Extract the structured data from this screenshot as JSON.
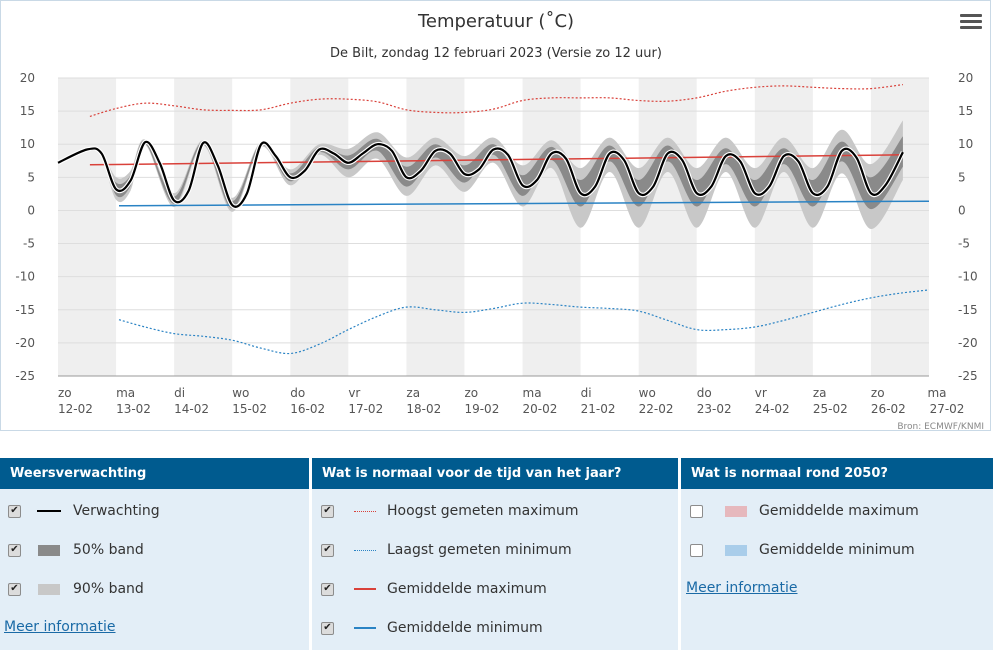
{
  "chart_data": {
    "type": "line",
    "title": "Temperatuur (˚C)",
    "subtitle": "De Bilt, zondag 12 februari 2023 (Versie zo 12 uur)",
    "source": "Bron: ECMWF/KNMI",
    "ylim": [
      -25,
      20
    ],
    "y_ticks": [
      20,
      15,
      10,
      5,
      0,
      -5,
      -10,
      -15,
      -20,
      -25
    ],
    "x_range": [
      0,
      15
    ],
    "x_ticks": [
      {
        "day": "zo",
        "date": "12-02"
      },
      {
        "day": "ma",
        "date": "13-02"
      },
      {
        "day": "di",
        "date": "14-02"
      },
      {
        "day": "wo",
        "date": "15-02"
      },
      {
        "day": "do",
        "date": "16-02"
      },
      {
        "day": "vr",
        "date": "17-02"
      },
      {
        "day": "za",
        "date": "18-02"
      },
      {
        "day": "zo",
        "date": "19-02"
      },
      {
        "day": "ma",
        "date": "20-02"
      },
      {
        "day": "di",
        "date": "21-02"
      },
      {
        "day": "wo",
        "date": "22-02"
      },
      {
        "day": "do",
        "date": "23-02"
      },
      {
        "day": "vr",
        "date": "24-02"
      },
      {
        "day": "za",
        "date": "25-02"
      },
      {
        "day": "zo",
        "date": "26-02"
      },
      {
        "day": "ma",
        "date": "27-02"
      }
    ],
    "grid": true,
    "series": [
      {
        "name": "Verwachting",
        "color": "#000000",
        "points": [
          [
            0.0,
            7.2
          ],
          [
            0.5,
            9.2
          ],
          [
            0.75,
            8.6
          ],
          [
            1.0,
            3.2
          ],
          [
            1.25,
            4.5
          ],
          [
            1.5,
            10.3
          ],
          [
            1.75,
            7.2
          ],
          [
            2.0,
            1.5
          ],
          [
            2.25,
            3.0
          ],
          [
            2.5,
            10.2
          ],
          [
            2.75,
            6.8
          ],
          [
            3.0,
            0.8
          ],
          [
            3.25,
            2.5
          ],
          [
            3.5,
            10.0
          ],
          [
            3.75,
            8.2
          ],
          [
            4.0,
            5.0
          ],
          [
            4.25,
            6.0
          ],
          [
            4.5,
            9.2
          ],
          [
            4.75,
            8.6
          ],
          [
            5.0,
            7.2
          ],
          [
            5.25,
            8.6
          ],
          [
            5.5,
            10.0
          ],
          [
            5.75,
            9.0
          ],
          [
            6.0,
            5.0
          ],
          [
            6.25,
            6.0
          ],
          [
            6.5,
            9.0
          ],
          [
            6.75,
            8.6
          ],
          [
            7.0,
            5.5
          ],
          [
            7.25,
            6.2
          ],
          [
            7.5,
            9.2
          ],
          [
            7.75,
            8.4
          ],
          [
            8.0,
            3.8
          ],
          [
            8.25,
            4.6
          ],
          [
            8.5,
            8.6
          ],
          [
            8.75,
            7.8
          ],
          [
            9.0,
            2.6
          ],
          [
            9.25,
            3.6
          ],
          [
            9.5,
            8.6
          ],
          [
            9.75,
            7.6
          ],
          [
            10.0,
            2.6
          ],
          [
            10.25,
            3.6
          ],
          [
            10.5,
            8.6
          ],
          [
            10.75,
            7.6
          ],
          [
            11.0,
            2.6
          ],
          [
            11.25,
            3.6
          ],
          [
            11.5,
            8.2
          ],
          [
            11.75,
            7.4
          ],
          [
            12.0,
            2.6
          ],
          [
            12.25,
            3.6
          ],
          [
            12.5,
            8.2
          ],
          [
            12.75,
            7.4
          ],
          [
            13.0,
            2.6
          ],
          [
            13.25,
            3.6
          ],
          [
            13.5,
            9.0
          ],
          [
            13.75,
            8.0
          ],
          [
            14.0,
            2.6
          ],
          [
            14.25,
            3.8
          ],
          [
            14.55,
            8.8
          ]
        ]
      },
      {
        "name": "50% band",
        "color": "#8a8a8a",
        "upper": [
          [
            0.55,
            9.3
          ],
          [
            0.75,
            8.8
          ],
          [
            1.0,
            4.2
          ],
          [
            1.25,
            5.3
          ],
          [
            1.5,
            10.5
          ],
          [
            2.0,
            2.1
          ],
          [
            2.5,
            10.4
          ],
          [
            3.0,
            1.4
          ],
          [
            3.5,
            10.2
          ],
          [
            4.0,
            5.6
          ],
          [
            4.5,
            9.6
          ],
          [
            5.0,
            8.3
          ],
          [
            5.5,
            10.8
          ],
          [
            6.0,
            6.6
          ],
          [
            6.5,
            10.0
          ],
          [
            7.0,
            6.8
          ],
          [
            7.5,
            10.0
          ],
          [
            8.0,
            5.3
          ],
          [
            8.5,
            9.6
          ],
          [
            9.0,
            4.6
          ],
          [
            9.5,
            9.8
          ],
          [
            10.0,
            4.6
          ],
          [
            10.5,
            9.8
          ],
          [
            11.0,
            4.6
          ],
          [
            11.5,
            9.4
          ],
          [
            12.0,
            4.6
          ],
          [
            12.5,
            9.4
          ],
          [
            13.0,
            4.6
          ],
          [
            13.5,
            10.4
          ],
          [
            14.0,
            5.0
          ],
          [
            14.55,
            11.2
          ]
        ],
        "lower": [
          [
            0.55,
            9.1
          ],
          [
            0.75,
            8.4
          ],
          [
            1.0,
            2.3
          ],
          [
            1.25,
            3.7
          ],
          [
            1.5,
            10.1
          ],
          [
            2.0,
            1.0
          ],
          [
            2.5,
            10.0
          ],
          [
            3.0,
            0.3
          ],
          [
            3.5,
            9.8
          ],
          [
            4.0,
            4.4
          ],
          [
            4.5,
            8.8
          ],
          [
            5.0,
            6.2
          ],
          [
            5.5,
            9.0
          ],
          [
            6.0,
            3.6
          ],
          [
            6.5,
            8.0
          ],
          [
            7.0,
            4.2
          ],
          [
            7.5,
            8.4
          ],
          [
            8.0,
            2.2
          ],
          [
            8.5,
            7.6
          ],
          [
            9.0,
            0.6
          ],
          [
            9.5,
            7.4
          ],
          [
            10.0,
            0.6
          ],
          [
            10.5,
            7.4
          ],
          [
            11.0,
            0.6
          ],
          [
            11.5,
            7.0
          ],
          [
            12.0,
            0.6
          ],
          [
            12.5,
            7.0
          ],
          [
            13.0,
            0.6
          ],
          [
            13.5,
            7.4
          ],
          [
            14.0,
            0.2
          ],
          [
            14.55,
            6.6
          ]
        ]
      },
      {
        "name": "90% band",
        "color": "#c8c8c8",
        "upper": [
          [
            0.55,
            9.4
          ],
          [
            0.75,
            9.0
          ],
          [
            1.0,
            5.0
          ],
          [
            1.25,
            6.0
          ],
          [
            1.5,
            10.7
          ],
          [
            2.0,
            2.6
          ],
          [
            2.5,
            10.6
          ],
          [
            3.0,
            1.9
          ],
          [
            3.5,
            10.4
          ],
          [
            4.0,
            6.2
          ],
          [
            4.5,
            10.0
          ],
          [
            5.0,
            9.3
          ],
          [
            5.5,
            11.8
          ],
          [
            6.0,
            8.0
          ],
          [
            6.5,
            11.0
          ],
          [
            7.0,
            8.2
          ],
          [
            7.5,
            11.0
          ],
          [
            8.0,
            6.8
          ],
          [
            8.5,
            10.6
          ],
          [
            9.0,
            6.4
          ],
          [
            9.5,
            11.0
          ],
          [
            10.0,
            6.4
          ],
          [
            10.5,
            11.0
          ],
          [
            11.0,
            6.4
          ],
          [
            11.5,
            11.0
          ],
          [
            12.0,
            6.4
          ],
          [
            12.5,
            11.0
          ],
          [
            13.0,
            6.4
          ],
          [
            13.5,
            12.2
          ],
          [
            14.0,
            7.0
          ],
          [
            14.55,
            13.6
          ]
        ],
        "lower": [
          [
            0.55,
            9.0
          ],
          [
            0.75,
            8.2
          ],
          [
            1.0,
            1.6
          ],
          [
            1.25,
            3.0
          ],
          [
            1.5,
            9.9
          ],
          [
            2.0,
            0.5
          ],
          [
            2.5,
            9.8
          ],
          [
            3.0,
            -0.2
          ],
          [
            3.5,
            9.6
          ],
          [
            4.0,
            3.8
          ],
          [
            4.5,
            8.4
          ],
          [
            5.0,
            5.0
          ],
          [
            5.5,
            7.8
          ],
          [
            6.0,
            2.2
          ],
          [
            6.5,
            6.8
          ],
          [
            7.0,
            2.8
          ],
          [
            7.5,
            7.2
          ],
          [
            8.0,
            0.6
          ],
          [
            8.5,
            6.4
          ],
          [
            9.0,
            -2.6
          ],
          [
            9.5,
            5.8
          ],
          [
            10.0,
            -2.6
          ],
          [
            10.5,
            5.8
          ],
          [
            11.0,
            -2.6
          ],
          [
            11.5,
            5.8
          ],
          [
            12.0,
            -2.6
          ],
          [
            12.5,
            5.8
          ],
          [
            13.0,
            -2.6
          ],
          [
            13.5,
            5.6
          ],
          [
            14.0,
            -2.8
          ],
          [
            14.55,
            4.6
          ]
        ]
      },
      {
        "name": "Hoogst gemeten maximum",
        "color": "#d9413a",
        "points": [
          [
            0.55,
            14.2
          ],
          [
            1.0,
            15.4
          ],
          [
            1.5,
            16.2
          ],
          [
            2.0,
            15.8
          ],
          [
            2.5,
            15.2
          ],
          [
            3.0,
            15.1
          ],
          [
            3.5,
            15.2
          ],
          [
            4.0,
            16.2
          ],
          [
            4.5,
            16.8
          ],
          [
            5.0,
            16.8
          ],
          [
            5.5,
            16.4
          ],
          [
            6.0,
            15.2
          ],
          [
            6.5,
            14.8
          ],
          [
            7.0,
            14.8
          ],
          [
            7.5,
            15.3
          ],
          [
            8.0,
            16.6
          ],
          [
            8.5,
            17.0
          ],
          [
            9.0,
            17.0
          ],
          [
            9.5,
            17.0
          ],
          [
            10.0,
            16.6
          ],
          [
            10.5,
            16.5
          ],
          [
            11.0,
            17.0
          ],
          [
            11.5,
            18.0
          ],
          [
            12.0,
            18.6
          ],
          [
            12.5,
            18.8
          ],
          [
            13.0,
            18.6
          ],
          [
            13.5,
            18.4
          ],
          [
            14.0,
            18.4
          ],
          [
            14.55,
            19.0
          ]
        ]
      },
      {
        "name": "Laagst gemeten minimum",
        "color": "#2a83c4",
        "points": [
          [
            1.05,
            -16.5
          ],
          [
            1.5,
            -17.6
          ],
          [
            2.0,
            -18.6
          ],
          [
            2.5,
            -19.0
          ],
          [
            3.0,
            -19.6
          ],
          [
            3.5,
            -20.8
          ],
          [
            4.0,
            -21.6
          ],
          [
            4.5,
            -20.2
          ],
          [
            5.0,
            -18.0
          ],
          [
            5.5,
            -16.0
          ],
          [
            6.0,
            -14.6
          ],
          [
            6.5,
            -15.0
          ],
          [
            7.0,
            -15.4
          ],
          [
            7.5,
            -14.8
          ],
          [
            8.0,
            -14.0
          ],
          [
            8.5,
            -14.2
          ],
          [
            9.0,
            -14.6
          ],
          [
            9.5,
            -14.8
          ],
          [
            10.0,
            -15.2
          ],
          [
            10.5,
            -16.6
          ],
          [
            11.0,
            -18.0
          ],
          [
            11.5,
            -18.0
          ],
          [
            12.0,
            -17.6
          ],
          [
            12.5,
            -16.6
          ],
          [
            13.0,
            -15.4
          ],
          [
            13.5,
            -14.2
          ],
          [
            14.0,
            -13.2
          ],
          [
            14.5,
            -12.5
          ],
          [
            15.0,
            -12.0
          ]
        ]
      },
      {
        "name": "Gemiddelde maximum",
        "color": "#d9413a",
        "points": [
          [
            0.55,
            6.9
          ],
          [
            14.55,
            8.4
          ]
        ]
      },
      {
        "name": "Gemiddelde minimum",
        "color": "#2a83c4",
        "points": [
          [
            1.05,
            0.7
          ],
          [
            15.0,
            1.4
          ]
        ]
      }
    ]
  },
  "legend": {
    "col1": {
      "title": "Weersverwachting",
      "items": [
        {
          "label": "Verwachting",
          "checked": true
        },
        {
          "label": "50% band",
          "checked": true
        },
        {
          "label": "90% band",
          "checked": true
        }
      ],
      "link": "Meer informatie"
    },
    "col2": {
      "title": "Wat is normaal voor de tijd van het jaar?",
      "items": [
        {
          "label": "Hoogst gemeten maximum",
          "checked": true
        },
        {
          "label": "Laagst gemeten minimum",
          "checked": true
        },
        {
          "label": "Gemiddelde maximum",
          "checked": true
        },
        {
          "label": "Gemiddelde minimum",
          "checked": true
        }
      ]
    },
    "col3": {
      "title": "Wat is normaal rond 2050?",
      "items": [
        {
          "label": "Gemiddelde maximum",
          "checked": false
        },
        {
          "label": "Gemiddelde minimum",
          "checked": false
        }
      ],
      "link": "Meer informatie"
    },
    "checkmark": "✔"
  },
  "colors": {
    "header_bg": "#005b8f",
    "panel_bg": "#e3eef7",
    "shade_day": "#efefef",
    "band50": "#8a8a8a",
    "band90": "#c8c8c8",
    "red": "#d9413a",
    "blue": "#2a83c4",
    "swatch_2050_max": "#e6b8bd",
    "swatch_2050_min": "#a9cdea"
  },
  "icons": {
    "menu": "hamburger-menu-icon"
  }
}
